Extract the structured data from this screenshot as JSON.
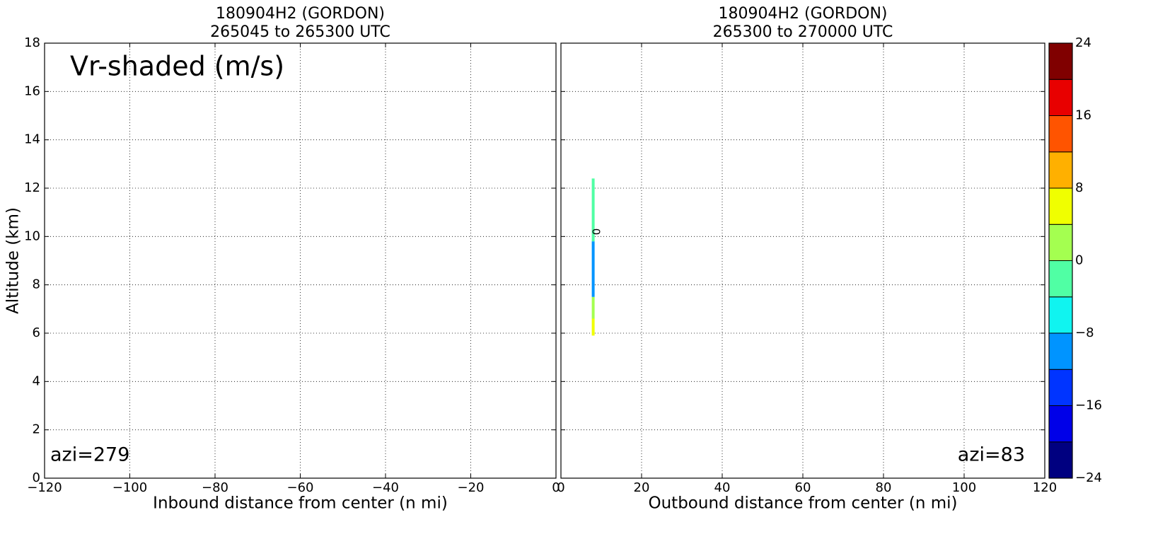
{
  "chart_data": [
    {
      "type": "section",
      "title": "180904H2 (GORDON)",
      "subtitle": "265045 to 265300 UTC",
      "x_label": "Inbound distance from center (n mi)",
      "y_label": "Altitude (km)",
      "annotation": "Vr-shaded (m/s)",
      "azimuth_label": "azi=279",
      "azimuth_corner": "left",
      "xlim": [
        -120,
        0
      ],
      "xticks": [
        {
          "value": -120,
          "label": "−120"
        },
        {
          "value": -100,
          "label": "−100"
        },
        {
          "value": -80,
          "label": "−80"
        },
        {
          "value": -60,
          "label": "−60"
        },
        {
          "value": -40,
          "label": "−40"
        },
        {
          "value": -20,
          "label": "−20"
        },
        0
      ],
      "ylim": [
        0,
        18
      ],
      "yticks": [
        0,
        2,
        4,
        6,
        8,
        10,
        12,
        14,
        16,
        18
      ],
      "yticklabels": true,
      "grid": true
    },
    {
      "type": "section",
      "title": "180904H2 (GORDON)",
      "subtitle": "265300 to 270000 UTC",
      "x_label": "Outbound distance from center (n mi)",
      "azimuth_label": "azi=83",
      "azimuth_corner": "right",
      "xlim": [
        0,
        120
      ],
      "xticks": [
        0,
        20,
        40,
        60,
        80,
        100,
        120
      ],
      "ylim": [
        0,
        18
      ],
      "yticks": [
        0,
        2,
        4,
        6,
        8,
        10,
        12,
        14,
        16,
        18
      ],
      "yticklabels": false,
      "grid": true,
      "strip": {
        "x": 8,
        "y_bottom": [
          5.9,
          6.6,
          7.5,
          9.8
        ],
        "y_top": [
          6.6,
          7.5,
          9.8,
          12.4
        ],
        "values": [
          6,
          2,
          -10,
          -2
        ]
      },
      "contour_labels": [
        {
          "text": "0",
          "x": 8.6,
          "y": 10.2
        }
      ]
    }
  ],
  "colorbar": {
    "levels": [
      -24,
      -20,
      -16,
      -12,
      -8,
      -4,
      0,
      4,
      8,
      12,
      16,
      20,
      24
    ],
    "colors": [
      "#000080",
      "#0000e8",
      "#0034ff",
      "#0094ff",
      "#10f4f0",
      "#50ffa4",
      "#a4ff50",
      "#f0ff00",
      "#ffb000",
      "#ff5400",
      "#e80000",
      "#800000"
    ],
    "ticks": [
      {
        "value": -24,
        "label": "−24"
      },
      {
        "value": -16,
        "label": "−16"
      },
      {
        "value": -8,
        "label": "−8"
      },
      0,
      8,
      16,
      24
    ]
  }
}
